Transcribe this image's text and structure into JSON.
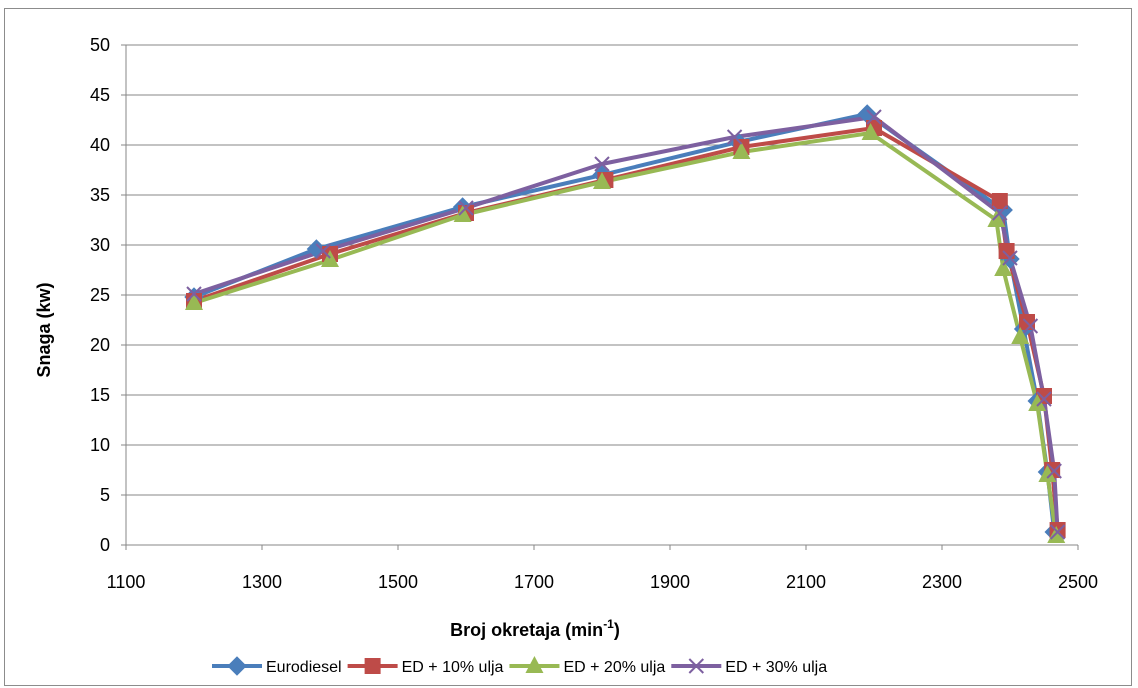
{
  "chart_data": {
    "type": "line",
    "title": "",
    "xlabel": "Broj okretaja (min",
    "xlabel_sup": "-1",
    "xlabel_suffix": ")",
    "ylabel": "Snaga (kw)",
    "xlim": [
      1100,
      2500
    ],
    "ylim": [
      0,
      50
    ],
    "xticks": [
      1100,
      1300,
      1500,
      1700,
      1900,
      2100,
      2300,
      2500
    ],
    "yticks": [
      0,
      5,
      10,
      15,
      20,
      25,
      30,
      35,
      40,
      45,
      50
    ],
    "grid": "horizontal",
    "legend_position": "bottom",
    "series": [
      {
        "name": "Eurodiesel",
        "color": "#4a7ebb",
        "marker": "diamond",
        "x": [
          1200,
          1380,
          1595,
          1800,
          2000,
          2190,
          2390,
          2400,
          2420,
          2440,
          2455,
          2465
        ],
        "y": [
          24.8,
          29.6,
          33.8,
          37.0,
          40.3,
          43.1,
          33.5,
          28.6,
          21.6,
          14.4,
          7.3,
          1.3
        ]
      },
      {
        "name": "ED + 10% ulja",
        "color": "#be4b48",
        "marker": "square",
        "x": [
          1200,
          1400,
          1600,
          1805,
          2005,
          2200,
          2385,
          2395,
          2425,
          2450,
          2462,
          2470
        ],
        "y": [
          24.4,
          29.1,
          33.2,
          36.5,
          39.8,
          41.7,
          34.4,
          29.4,
          22.3,
          14.9,
          7.5,
          1.5
        ]
      },
      {
        "name": "ED + 20% ulja",
        "color": "#98b954",
        "marker": "triangle",
        "x": [
          1200,
          1400,
          1595,
          1800,
          2005,
          2195,
          2380,
          2390,
          2415,
          2440,
          2455,
          2468
        ],
        "y": [
          24.2,
          28.5,
          33.0,
          36.3,
          39.3,
          41.2,
          32.5,
          27.6,
          20.8,
          14.1,
          7.0,
          0.9
        ]
      },
      {
        "name": "ED + 30% ulja",
        "color": "#7d60a0",
        "marker": "x",
        "x": [
          1200,
          1390,
          1600,
          1800,
          1995,
          2200,
          2385,
          2400,
          2430,
          2450,
          2465,
          2470
        ],
        "y": [
          25.1,
          29.4,
          33.7,
          38.1,
          40.8,
          42.8,
          33.2,
          28.7,
          21.9,
          14.6,
          7.4,
          1.3
        ]
      }
    ]
  }
}
